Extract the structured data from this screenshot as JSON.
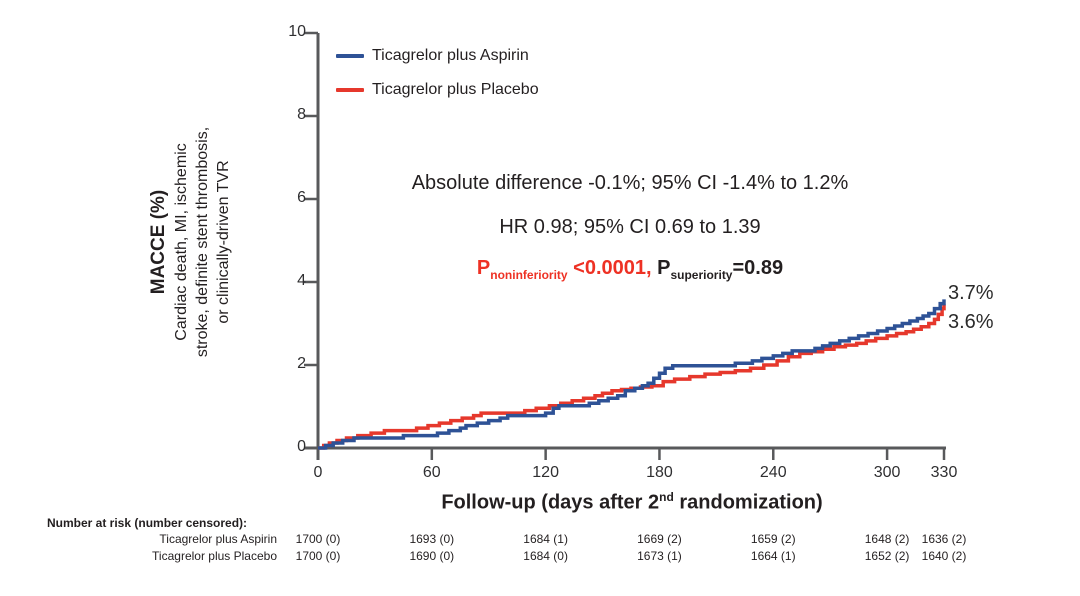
{
  "colors": {
    "aspirin_blue": "#2e5296",
    "placebo_red": "#e6382c",
    "p_noninferiority_red": "#ee3124",
    "axis_gray": "#58595b",
    "text_black": "#231f20"
  },
  "annotations": {
    "line1": "Absolute difference -0.1%; 95% CI -1.4% to 1.2%",
    "line2": "HR 0.98; 95% CI 0.69 to 1.39",
    "pvalues": {
      "noninf_p": "P",
      "noninf_sub": "noninferiority",
      "noninf_val": " <0.0001, ",
      "sup_p": "P",
      "sup_sub": "superiority",
      "sup_val": "=0.89"
    }
  },
  "y_axis": {
    "title": "MACCE (%)",
    "subtitle_lines": [
      "Cardiac death, MI, ischemic",
      "stroke, definite stent thrombosis,",
      "or clinically-driven TVR"
    ]
  },
  "x_axis": {
    "title_prefix": "Follow-up (days after 2",
    "title_sup": "nd",
    "title_suffix": " randomization)"
  },
  "risk_table": {
    "header": "Number at risk (number censored):",
    "rows": [
      {
        "label": "Ticagrelor plus Aspirin",
        "values": [
          "1700 (0)",
          "1693 (0)",
          "1684 (1)",
          "1669 (2)",
          "1659 (2)",
          "1648 (2)",
          "1636 (2)"
        ]
      },
      {
        "label": "Ticagrelor plus Placebo",
        "values": [
          "1700 (0)",
          "1690 (0)",
          "1684 (0)",
          "1673 (1)",
          "1664 (1)",
          "1652 (2)",
          "1640 (2)"
        ]
      }
    ]
  },
  "chart_data": {
    "type": "line",
    "subtype": "kaplan-meier cumulative incidence (step curves)",
    "title": "",
    "xlabel": "Follow-up (days after 2nd randomization)",
    "ylabel": "MACCE (%) - Cardiac death, MI, ischemic stroke, definite stent thrombosis, or clinically-driven TVR",
    "xlim": [
      0,
      330
    ],
    "ylim": [
      0,
      10
    ],
    "x_ticks": [
      0,
      60,
      120,
      180,
      240,
      300,
      330
    ],
    "y_ticks": [
      0,
      2,
      4,
      6,
      8,
      10
    ],
    "grid": false,
    "legend_position": "top-left",
    "annotations": [
      "Absolute difference -0.1%; 95% CI -1.4% to 1.2%",
      "HR 0.98; 95% CI 0.69 to 1.39",
      "P_noninferiority <0.0001, P_superiority=0.89"
    ],
    "series": [
      {
        "name": "Ticagrelor plus Aspirin",
        "color": "#2e5296",
        "final_label": "3.7%",
        "final_value_pct": 3.7,
        "points": [
          [
            0,
            0
          ],
          [
            4,
            0.06
          ],
          [
            8,
            0.12
          ],
          [
            13,
            0.18
          ],
          [
            19,
            0.24
          ],
          [
            41,
            0.24
          ],
          [
            45,
            0.3
          ],
          [
            59,
            0.3
          ],
          [
            63,
            0.36
          ],
          [
            69,
            0.42
          ],
          [
            75,
            0.48
          ],
          [
            78,
            0.54
          ],
          [
            84,
            0.6
          ],
          [
            90,
            0.66
          ],
          [
            96,
            0.72
          ],
          [
            100,
            0.78
          ],
          [
            114,
            0.78
          ],
          [
            120,
            0.84
          ],
          [
            124,
            0.96
          ],
          [
            127,
            1.02
          ],
          [
            138,
            1.02
          ],
          [
            143,
            1.08
          ],
          [
            148,
            1.14
          ],
          [
            153,
            1.2
          ],
          [
            158,
            1.26
          ],
          [
            162,
            1.38
          ],
          [
            167,
            1.44
          ],
          [
            171,
            1.5
          ],
          [
            174,
            1.56
          ],
          [
            177,
            1.68
          ],
          [
            180,
            1.8
          ],
          [
            183,
            1.92
          ],
          [
            187,
            1.98
          ],
          [
            220,
            2.04
          ],
          [
            229,
            2.1
          ],
          [
            234,
            2.16
          ],
          [
            240,
            2.22
          ],
          [
            245,
            2.28
          ],
          [
            250,
            2.34
          ],
          [
            262,
            2.4
          ],
          [
            266,
            2.46
          ],
          [
            270,
            2.52
          ],
          [
            275,
            2.58
          ],
          [
            280,
            2.64
          ],
          [
            285,
            2.7
          ],
          [
            290,
            2.76
          ],
          [
            295,
            2.82
          ],
          [
            300,
            2.88
          ],
          [
            304,
            2.94
          ],
          [
            308,
            3.0
          ],
          [
            312,
            3.06
          ],
          [
            316,
            3.12
          ],
          [
            319,
            3.18
          ],
          [
            322,
            3.24
          ],
          [
            325,
            3.36
          ],
          [
            328,
            3.48
          ],
          [
            330,
            3.58
          ]
        ]
      },
      {
        "name": "Ticagrelor plus Placebo",
        "color": "#e6382c",
        "final_label": "3.6%",
        "final_value_pct": 3.6,
        "points": [
          [
            0,
            0
          ],
          [
            3,
            0.06
          ],
          [
            6,
            0.12
          ],
          [
            10,
            0.18
          ],
          [
            15,
            0.24
          ],
          [
            21,
            0.3
          ],
          [
            28,
            0.36
          ],
          [
            35,
            0.42
          ],
          [
            48,
            0.42
          ],
          [
            52,
            0.48
          ],
          [
            58,
            0.54
          ],
          [
            64,
            0.6
          ],
          [
            70,
            0.66
          ],
          [
            76,
            0.72
          ],
          [
            82,
            0.78
          ],
          [
            86,
            0.84
          ],
          [
            104,
            0.84
          ],
          [
            109,
            0.9
          ],
          [
            115,
            0.96
          ],
          [
            122,
            1.02
          ],
          [
            128,
            1.08
          ],
          [
            134,
            1.14
          ],
          [
            140,
            1.2
          ],
          [
            146,
            1.26
          ],
          [
            150,
            1.32
          ],
          [
            155,
            1.38
          ],
          [
            160,
            1.41
          ],
          [
            165,
            1.44
          ],
          [
            170,
            1.47
          ],
          [
            176,
            1.5
          ],
          [
            182,
            1.6
          ],
          [
            188,
            1.66
          ],
          [
            196,
            1.72
          ],
          [
            204,
            1.78
          ],
          [
            212,
            1.82
          ],
          [
            220,
            1.86
          ],
          [
            228,
            1.92
          ],
          [
            235,
            2.0
          ],
          [
            242,
            2.1
          ],
          [
            248,
            2.2
          ],
          [
            254,
            2.28
          ],
          [
            260,
            2.32
          ],
          [
            266,
            2.38
          ],
          [
            272,
            2.44
          ],
          [
            278,
            2.48
          ],
          [
            284,
            2.52
          ],
          [
            289,
            2.58
          ],
          [
            294,
            2.64
          ],
          [
            300,
            2.7
          ],
          [
            305,
            2.76
          ],
          [
            310,
            2.8
          ],
          [
            314,
            2.86
          ],
          [
            318,
            2.92
          ],
          [
            322,
            3.0
          ],
          [
            325,
            3.1
          ],
          [
            327,
            3.22
          ],
          [
            329,
            3.36
          ],
          [
            330,
            3.46
          ]
        ]
      }
    ],
    "number_at_risk_days": [
      0,
      60,
      120,
      180,
      240,
      300,
      330
    ]
  }
}
